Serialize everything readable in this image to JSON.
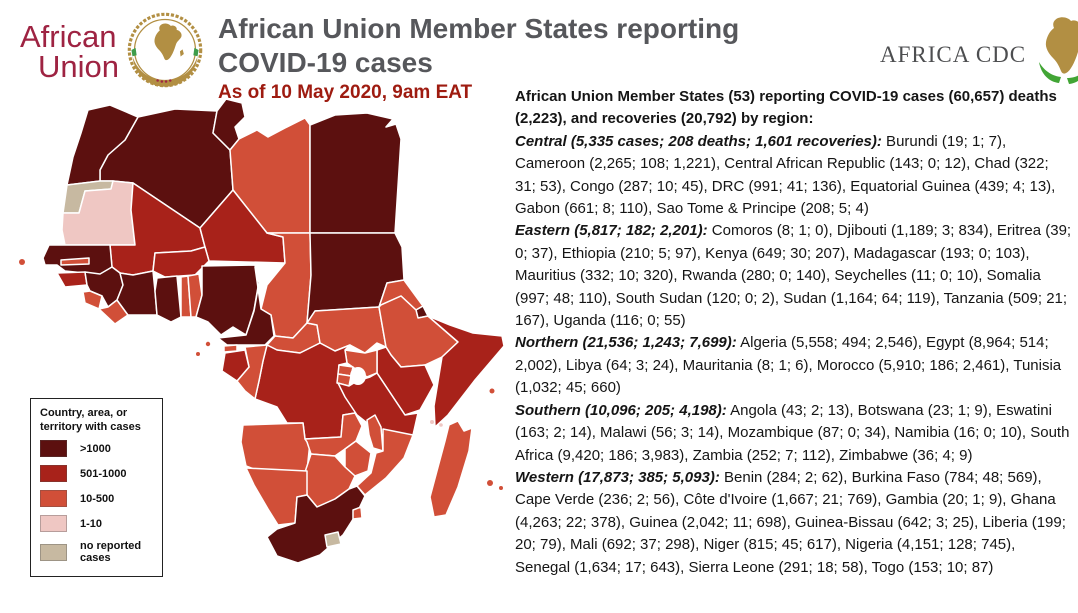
{
  "header": {
    "au_logo_line1": "African",
    "au_logo_line2": "Union",
    "title_line1": "African Union Member States reporting",
    "title_line2": "COVID-19 cases",
    "subtitle": "As of 10 May 2020, 9am EAT",
    "cdc_logo_text": "AFRICA CDC"
  },
  "summary": {
    "intro": "African Union Member States (53) reporting COVID-19 cases (60,657) deaths (2,223), and recoveries (20,792) by region:",
    "regions": [
      {
        "heading": "Central (5,335 cases; 208 deaths; 1,601 recoveries):",
        "body": "Burundi (19; 1; 7), Cameroon (2,265; 108; 1,221), Central African Republic (143; 0; 12), Chad (322; 31; 53), Congo (287; 10; 45), DRC (991; 41; 136), Equatorial Guinea (439; 4; 13), Gabon (661; 8; 110), Sao Tome & Principe (208; 5; 4)"
      },
      {
        "heading": "Eastern (5,817; 182; 2,201):",
        "body": "Comoros (8; 1; 0), Djibouti (1,189; 3; 834), Eritrea (39; 0; 37), Ethiopia (210; 5; 97), Kenya (649; 30; 207), Madagascar (193; 0; 103), Mauritius (332; 10; 320), Rwanda (280; 0; 140), Seychelles (11; 0; 10), Somalia (997; 48; 110), South Sudan (120; 0; 2), Sudan (1,164; 64; 119), Tanzania (509; 21; 167), Uganda (116; 0; 55)"
      },
      {
        "heading": "Northern (21,536; 1,243; 7,699):",
        "body": "Algeria (5,558; 494; 2,546), Egypt (8,964; 514; 2,002), Libya (64; 3; 24), Mauritania (8; 1; 6), Morocco (5,910; 186; 2,461), Tunisia (1,032; 45; 660)"
      },
      {
        "heading": "Southern (10,096; 205; 4,198):",
        "body": "Angola (43; 2; 13), Botswana (23; 1; 9), Eswatini (163; 2; 14), Malawi (56; 3; 14), Mozambique (87; 0; 34), Namibia (16; 0; 10), South Africa (9,420; 186; 3,983), Zambia (252; 7; 112), Zimbabwe (36; 4; 9)"
      },
      {
        "heading": "Western (17,873; 385; 5,093):",
        "body": "Benin (284; 2; 62), Burkina Faso (784; 48; 569), Cape Verde (236; 2; 56), Côte d'Ivoire (1,667; 21; 769), Gambia (20; 1; 9), Ghana (4,263; 22; 378), Guinea (2,042; 11; 698), Guinea-Bissau (642; 3; 25), Liberia (199; 20; 79), Mali (692; 37; 298), Niger (815; 45; 617), Nigeria (4,151; 128; 745), Senegal (1,634; 17; 643), Sierra Leone (291; 18; 58), Togo (153; 10; 87)"
      }
    ]
  },
  "legend": {
    "title": "Country, area, or territory with cases",
    "items": [
      {
        "label": ">1000",
        "band": "gt1000"
      },
      {
        "label": "501-1000",
        "band": "b501_1000"
      },
      {
        "label": "10-500",
        "band": "b10_500"
      },
      {
        "label": "1-10",
        "band": "b1_10"
      },
      {
        "label": "no reported cases",
        "band": "none"
      }
    ]
  },
  "map": {
    "band_colors": {
      "gt1000": "#5C100F",
      "b501_1000": "#A8221A",
      "b10_500": "#D14F38",
      "b1_10": "#EFC7C3",
      "none": "#C7B9A1"
    },
    "countries": [
      {
        "id": "morocco",
        "name": "Morocco",
        "band": "gt1000"
      },
      {
        "id": "western-sahara",
        "name": "Western Sahara",
        "band": "none"
      },
      {
        "id": "mauritania",
        "name": "Mauritania",
        "band": "b1_10"
      },
      {
        "id": "algeria",
        "name": "Algeria",
        "band": "gt1000"
      },
      {
        "id": "tunisia",
        "name": "Tunisia",
        "band": "gt1000"
      },
      {
        "id": "libya",
        "name": "Libya",
        "band": "b10_500"
      },
      {
        "id": "egypt",
        "name": "Egypt",
        "band": "gt1000"
      },
      {
        "id": "mali",
        "name": "Mali",
        "band": "b501_1000"
      },
      {
        "id": "niger",
        "name": "Niger",
        "band": "b501_1000"
      },
      {
        "id": "chad",
        "name": "Chad",
        "band": "b10_500"
      },
      {
        "id": "sudan",
        "name": "Sudan",
        "band": "gt1000"
      },
      {
        "id": "senegal",
        "name": "Senegal",
        "band": "gt1000"
      },
      {
        "id": "gambia",
        "name": "Gambia",
        "band": "b10_500"
      },
      {
        "id": "guinea-bissau",
        "name": "Guinea-Bissau",
        "band": "b501_1000"
      },
      {
        "id": "guinea",
        "name": "Guinea",
        "band": "gt1000"
      },
      {
        "id": "sierra-leone",
        "name": "Sierra Leone",
        "band": "b10_500"
      },
      {
        "id": "liberia",
        "name": "Liberia",
        "band": "b10_500"
      },
      {
        "id": "cote-divoire",
        "name": "Côte d'Ivoire",
        "band": "gt1000"
      },
      {
        "id": "burkina-faso",
        "name": "Burkina Faso",
        "band": "b501_1000"
      },
      {
        "id": "ghana",
        "name": "Ghana",
        "band": "gt1000"
      },
      {
        "id": "togo",
        "name": "Togo",
        "band": "b10_500"
      },
      {
        "id": "benin",
        "name": "Benin",
        "band": "b10_500"
      },
      {
        "id": "nigeria",
        "name": "Nigeria",
        "band": "gt1000"
      },
      {
        "id": "cameroon",
        "name": "Cameroon",
        "band": "gt1000"
      },
      {
        "id": "car",
        "name": "Central African Republic",
        "band": "b10_500"
      },
      {
        "id": "south-sudan",
        "name": "South Sudan",
        "band": "b10_500"
      },
      {
        "id": "eritrea",
        "name": "Eritrea",
        "band": "b10_500"
      },
      {
        "id": "djibouti",
        "name": "Djibouti",
        "band": "gt1000"
      },
      {
        "id": "ethiopia",
        "name": "Ethiopia",
        "band": "b10_500"
      },
      {
        "id": "somalia",
        "name": "Somalia",
        "band": "b501_1000"
      },
      {
        "id": "kenya",
        "name": "Kenya",
        "band": "b501_1000"
      },
      {
        "id": "uganda",
        "name": "Uganda",
        "band": "b10_500"
      },
      {
        "id": "rwanda",
        "name": "Rwanda",
        "band": "b10_500"
      },
      {
        "id": "burundi",
        "name": "Burundi",
        "band": "b10_500"
      },
      {
        "id": "drc",
        "name": "DRC",
        "band": "b501_1000"
      },
      {
        "id": "congo",
        "name": "Congo",
        "band": "b10_500"
      },
      {
        "id": "gabon",
        "name": "Gabon",
        "band": "b501_1000"
      },
      {
        "id": "eq-guinea",
        "name": "Equatorial Guinea",
        "band": "b10_500"
      },
      {
        "id": "sao-tome",
        "name": "Sao Tome & Principe",
        "band": "b10_500"
      },
      {
        "id": "angola",
        "name": "Angola",
        "band": "b10_500"
      },
      {
        "id": "zambia",
        "name": "Zambia",
        "band": "b10_500"
      },
      {
        "id": "tanzania",
        "name": "Tanzania",
        "band": "b501_1000"
      },
      {
        "id": "malawi",
        "name": "Malawi",
        "band": "b10_500"
      },
      {
        "id": "mozambique",
        "name": "Mozambique",
        "band": "b10_500"
      },
      {
        "id": "zimbabwe",
        "name": "Zimbabwe",
        "band": "b10_500"
      },
      {
        "id": "botswana",
        "name": "Botswana",
        "band": "b10_500"
      },
      {
        "id": "namibia",
        "name": "Namibia",
        "band": "b10_500"
      },
      {
        "id": "south-africa",
        "name": "South Africa",
        "band": "gt1000"
      },
      {
        "id": "lesotho",
        "name": "Lesotho",
        "band": "none"
      },
      {
        "id": "eswatini",
        "name": "Eswatini",
        "band": "b10_500"
      },
      {
        "id": "madagascar",
        "name": "Madagascar",
        "band": "b10_500"
      },
      {
        "id": "cape-verde",
        "name": "Cape Verde",
        "band": "b10_500"
      },
      {
        "id": "comoros",
        "name": "Comoros",
        "band": "b1_10"
      },
      {
        "id": "seychelles",
        "name": "Seychelles",
        "band": "b10_500"
      },
      {
        "id": "mauritius",
        "name": "Mauritius",
        "band": "b10_500"
      }
    ]
  }
}
